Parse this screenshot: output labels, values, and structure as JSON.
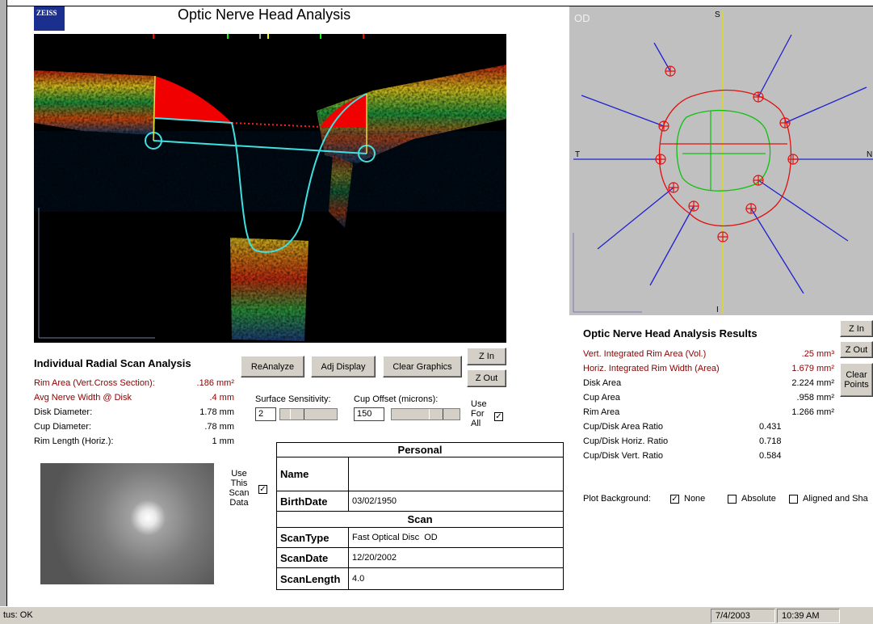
{
  "header": {
    "logo": "ZEISS",
    "title": "Optic Nerve Head Analysis"
  },
  "fundus_plot": {
    "eye": "OD",
    "superior": "S",
    "temporal": "T",
    "nasal": "N",
    "inferior": "I"
  },
  "radial_scan": {
    "title": "Individual Radial Scan Analysis",
    "rows": [
      {
        "label": "Rim  Area (Vert.Cross Section):",
        "value": ".186 mm²"
      },
      {
        "label": "Avg Nerve Width @ Disk",
        "value": ".4 mm"
      },
      {
        "label": "Disk Diameter:",
        "value": "1.78 mm"
      },
      {
        "label": "Cup Diameter:",
        "value": ".78 mm"
      },
      {
        "label": "Rim Length (Horiz.):",
        "value": "1 mm"
      }
    ]
  },
  "buttons": {
    "reanalyze": "ReAnalyze",
    "adj_display": "Adj Display",
    "clear_graphics": "Clear Graphics",
    "zoom_in": "Z In",
    "zoom_out": "Z Out",
    "plot_zoom_in": "Z In",
    "plot_zoom_out": "Z Out",
    "clear_points": "Clear Points"
  },
  "controls": {
    "surface_sensitivity_label": "Surface Sensitivity:",
    "surface_sensitivity": "2",
    "cup_offset_label": "Cup Offset (microns):",
    "cup_offset": "150",
    "use_for_all": {
      "label": "Use For All",
      "checked": true
    },
    "use_scan_data": {
      "label": "Use This Scan Data",
      "checked": true
    }
  },
  "info_table": {
    "personal_header": "Personal",
    "personal": [
      {
        "label": "Name"
      },
      {
        "label": "BirthDate",
        "value": "03/02/1950"
      }
    ],
    "scan_header": "Scan",
    "scan": [
      {
        "label": "ScanType",
        "value": "Fast Optical Disc  OD"
      },
      {
        "label": "ScanDate",
        "value": "12/20/2002"
      },
      {
        "label": "ScanLength",
        "value": "4.0"
      }
    ]
  },
  "results": {
    "title": "Optic Nerve Head Analysis Results",
    "rows": [
      {
        "label": "Vert. Integrated Rim Area (Vol.)",
        "value": ".25 mm³"
      },
      {
        "label": "Horiz. Integrated Rim Width (Area)",
        "value": "1.679 mm²"
      },
      {
        "label": "Disk Area",
        "value": "2.224 mm²"
      },
      {
        "label": "Cup Area",
        "value": ".958 mm²"
      },
      {
        "label": "Rim Area",
        "value": "1.266 mm²"
      },
      {
        "label": "Cup/Disk Area Ratio",
        "value": "0.431"
      },
      {
        "label": "Cup/Disk Horiz. Ratio",
        "value": "0.718"
      },
      {
        "label": "Cup/Disk Vert. Ratio",
        "value": "0.584"
      }
    ]
  },
  "plot_background": {
    "label": "Plot Background:",
    "options": [
      {
        "label": "None",
        "checked": true
      },
      {
        "label": "Absolute",
        "checked": false
      },
      {
        "label": "Aligned and Sha",
        "checked": false
      }
    ]
  },
  "status": {
    "message": "tus: OK",
    "date": "7/4/2003",
    "time": "10:39 AM"
  }
}
